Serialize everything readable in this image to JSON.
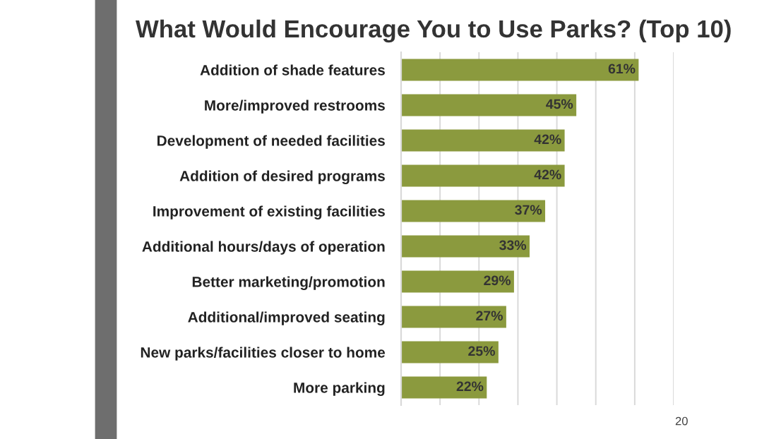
{
  "chart_data": {
    "type": "bar",
    "orientation": "horizontal",
    "title": "What Would Encourage You to Use Parks? (Top 10)",
    "categories": [
      "Addition of shade features",
      "More/improved restrooms",
      "Development of needed facilities",
      "Addition of desired programs",
      "Improvement of existing facilities",
      "Additional hours/days of operation",
      "Better marketing/promotion",
      "Additional/improved seating",
      "New parks/facilities closer to home",
      "More parking"
    ],
    "values": [
      61,
      45,
      42,
      42,
      37,
      33,
      29,
      27,
      25,
      22
    ],
    "value_labels": [
      "61%",
      "45%",
      "42%",
      "42%",
      "37%",
      "33%",
      "29%",
      "27%",
      "25%",
      "22%"
    ],
    "color": "#8b9a3e",
    "xlim": [
      0,
      70
    ],
    "xticks": [
      {
        "value": 0,
        "label": null
      },
      {
        "value": 10,
        "label": null
      },
      {
        "value": 20,
        "label": null
      },
      {
        "value": 30,
        "label": null
      },
      {
        "value": 40,
        "label": null
      },
      {
        "value": 50,
        "label": null
      },
      {
        "value": 60,
        "label": null
      },
      {
        "value": 70,
        "label": null
      }
    ],
    "tick_labels": "y",
    "grid": "x",
    "annotations": [
      "20"
    ]
  }
}
